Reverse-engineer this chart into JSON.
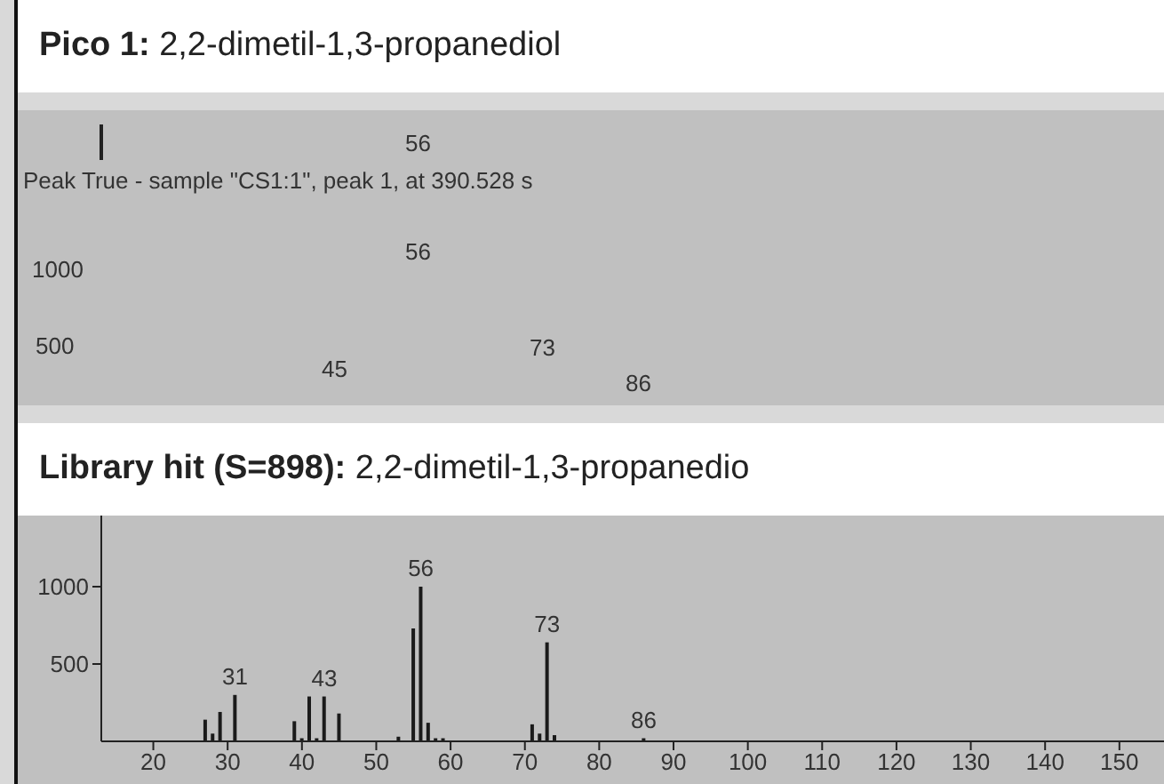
{
  "chart_data": [
    {
      "type": "other",
      "title": "Pico 1: 2,2-dimetil-1,3-propanediol",
      "annotations": [
        "56",
        "Peak True - sample \"CS1:1\", peak 1, at 390.528 s",
        "56",
        "1000",
        "500",
        "73",
        "45",
        "86"
      ]
    },
    {
      "type": "bar",
      "title": "Library hit (S=898): 2,2-dimetil-1,3-propanedio",
      "color": "#1a1a1a",
      "x": [
        27,
        28,
        29,
        31,
        39,
        40,
        41,
        42,
        43,
        45,
        53,
        55,
        56,
        57,
        58,
        59,
        71,
        72,
        73,
        74,
        86
      ],
      "values": [
        140,
        50,
        190,
        300,
        130,
        20,
        290,
        20,
        290,
        180,
        30,
        730,
        1000,
        120,
        20,
        20,
        110,
        50,
        640,
        40,
        20
      ],
      "annotations": [
        {
          "text": "31",
          "x": 31,
          "y": 300
        },
        {
          "text": "43",
          "x": 43,
          "y": 290
        },
        {
          "text": "56",
          "x": 56,
          "y": 1000
        },
        {
          "text": "73",
          "x": 73,
          "y": 640
        },
        {
          "text": "86",
          "x": 86,
          "y": 20
        }
      ],
      "xlim": [
        13,
        156
      ],
      "xticks": [
        20,
        30,
        40,
        50,
        60,
        70,
        80,
        90,
        100,
        110,
        120,
        130,
        140,
        150
      ],
      "ylim": [
        0,
        1460
      ],
      "yticks": [
        500,
        1000
      ],
      "grid": false,
      "legend": false
    }
  ]
}
